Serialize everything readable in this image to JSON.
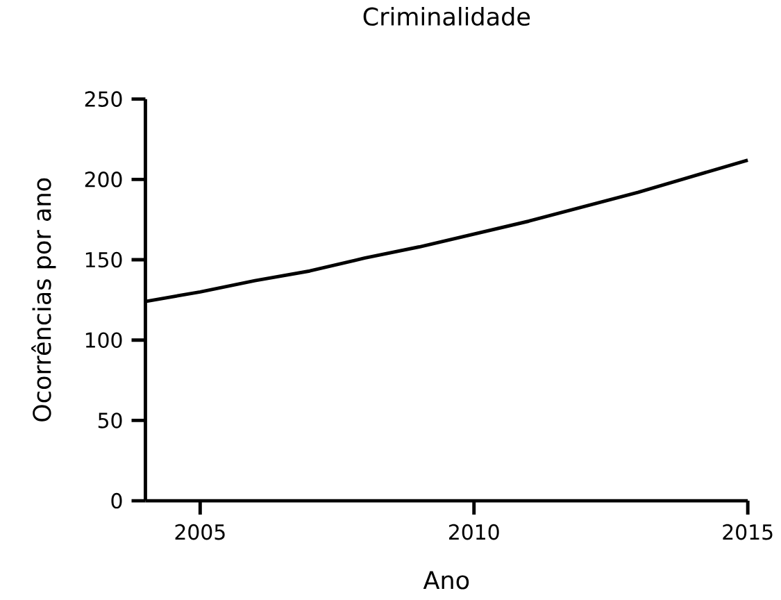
{
  "chart_data": {
    "type": "line",
    "title": "Criminalidade",
    "xlabel": "Ano",
    "ylabel": "Ocorrências por ano",
    "x": [
      2004,
      2005,
      2006,
      2007,
      2008,
      2009,
      2010,
      2011,
      2012,
      2013,
      2014,
      2015
    ],
    "values": [
      124,
      130,
      137,
      143,
      151,
      158,
      166,
      174,
      183,
      192,
      202,
      212
    ],
    "color": "#000000",
    "line_style": "solid",
    "xlim": [
      2004,
      2015
    ],
    "ylim": [
      0,
      250
    ],
    "xticks": [
      2005,
      2010,
      2015
    ],
    "yticks": [
      0,
      50,
      100,
      150,
      200,
      250
    ]
  }
}
